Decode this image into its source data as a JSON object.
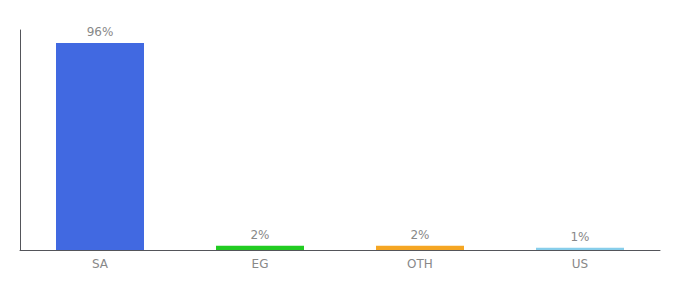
{
  "chart_data": {
    "type": "bar",
    "categories": [
      "SA",
      "EG",
      "OTH",
      "US"
    ],
    "values": [
      96,
      2,
      2,
      1
    ],
    "value_labels": [
      "96%",
      "2%",
      "2%",
      "1%"
    ],
    "colors": [
      "#4169e1",
      "#22cc22",
      "#f5a623",
      "#87ceeb"
    ],
    "ylim": [
      0,
      102
    ],
    "data_labels": true,
    "tick_labels": "x",
    "grid": false
  }
}
